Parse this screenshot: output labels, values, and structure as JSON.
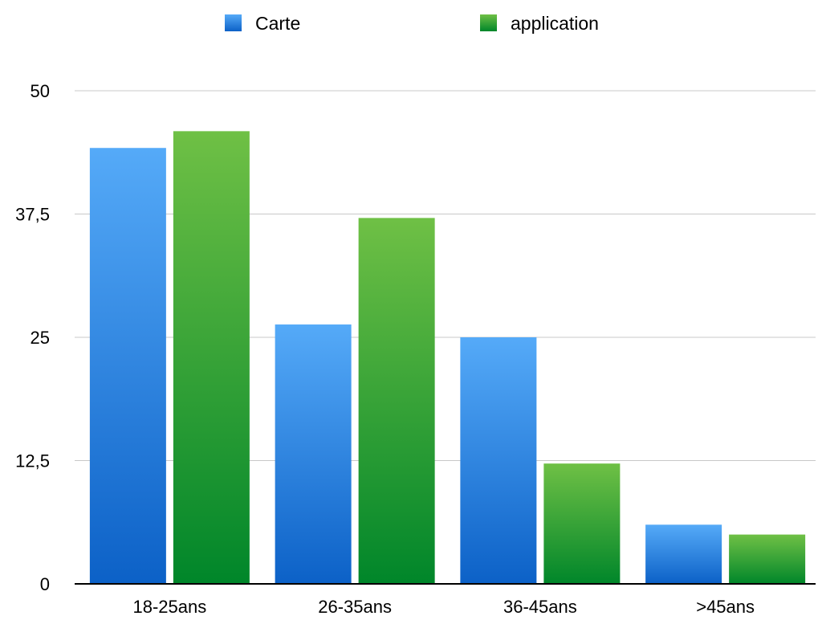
{
  "chart_data": {
    "type": "bar",
    "categories": [
      "18-25ans",
      "26-35ans",
      "36-45ans",
      ">45ans"
    ],
    "series": [
      {
        "name": "Carte",
        "values": [
          44.2,
          26.3,
          25.0,
          6.0
        ],
        "color_top": "#55aaf8",
        "color_bottom": "#0c61c7"
      },
      {
        "name": "application",
        "values": [
          45.9,
          37.1,
          12.2,
          5.0
        ],
        "color_top": "#6fc045",
        "color_bottom": "#00862a"
      }
    ],
    "yticks": [
      "0",
      "12,5",
      "25",
      "37,5",
      "50"
    ],
    "ylim": [
      0,
      50
    ],
    "grid": true,
    "legend_position": "top-center",
    "title": "",
    "xlabel": "",
    "ylabel": ""
  }
}
